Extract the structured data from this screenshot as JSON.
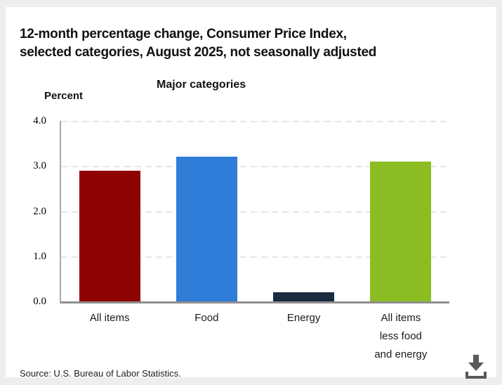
{
  "header": {
    "title": "12-month percentage change, Consumer Price Index,\nselected categories, August 2025, not seasonally adjusted"
  },
  "chart": {
    "unit_label": "Percent",
    "subtitle": "Major categories"
  },
  "footer": {
    "source": "Source: U.S. Bureau of Labor Statistics.",
    "download_icon": "download-icon"
  },
  "colors": {
    "page_background": "#eeeeee",
    "panel_background": "#ffffff",
    "axis_line": "#a9a9a9",
    "baseline": "#8f8f8f",
    "gridline": "#e6e6e6",
    "icon": "#58595b",
    "all_items_bar": "#8e0202",
    "food_bar": "#2f7dd8",
    "energy_bar": "#1a2a40",
    "all_items_less_food_energy_bar": "#8bbd22"
  },
  "chart_data": {
    "type": "bar",
    "title": "Major categories",
    "ylabel": "Percent",
    "categories": [
      "All items",
      "Food",
      "Energy",
      "All items\nless food\nand energy"
    ],
    "values": [
      2.9,
      3.2,
      0.2,
      3.1
    ],
    "bar_colors": [
      "#8e0202",
      "#2f7dd8",
      "#1a2a40",
      "#8bbd22"
    ],
    "ylim": [
      0,
      4
    ],
    "ytick_labels": [
      "4.0",
      "3.0",
      "2.0",
      "1.0",
      "0.0"
    ],
    "grid": "horizontal-dashed",
    "legend": "none"
  }
}
